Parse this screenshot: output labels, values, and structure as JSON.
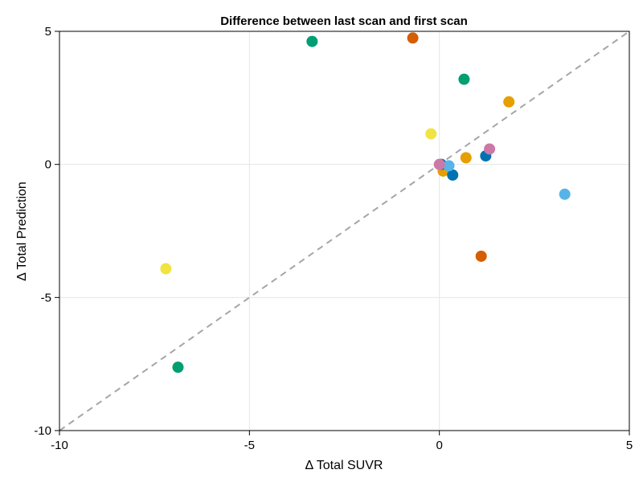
{
  "chart_data": {
    "type": "scatter",
    "title": "Difference between last scan and first scan",
    "xlabel": "Δ Total SUVR",
    "ylabel": "Δ Total Prediction",
    "xlim": [
      -10,
      5
    ],
    "ylim": [
      -10,
      5
    ],
    "xticks": [
      -10,
      -5,
      0,
      5
    ],
    "yticks": [
      -10,
      -5,
      0,
      5
    ],
    "x_tick_labels": [
      "-10",
      "-5",
      "0",
      "5"
    ],
    "y_tick_labels": [
      "-10",
      "-5",
      "0",
      "5"
    ],
    "grid": true,
    "reference_line": {
      "kind": "identity",
      "style": "dashed",
      "color": "#a6a6a6"
    },
    "series": [
      {
        "color": "#009E73",
        "points": [
          [
            -3.35,
            4.62
          ],
          [
            0.65,
            3.2
          ],
          [
            -6.88,
            -7.62
          ]
        ]
      },
      {
        "color": "#D55E00",
        "points": [
          [
            -0.7,
            4.75
          ],
          [
            1.1,
            -3.45
          ]
        ]
      },
      {
        "color": "#E69F00",
        "points": [
          [
            1.83,
            2.35
          ],
          [
            0.7,
            0.25
          ],
          [
            0.1,
            -0.25
          ]
        ]
      },
      {
        "color": "#F0E442",
        "points": [
          [
            -0.22,
            1.15
          ],
          [
            -7.2,
            -3.92
          ]
        ]
      },
      {
        "color": "#0072B2",
        "points": [
          [
            1.22,
            0.32
          ],
          [
            0.35,
            -0.4
          ],
          [
            0.05,
            0.0
          ]
        ]
      },
      {
        "color": "#56B4E9",
        "points": [
          [
            3.3,
            -1.12
          ],
          [
            0.25,
            -0.05
          ]
        ]
      },
      {
        "color": "#CC79A7",
        "points": [
          [
            1.32,
            0.58
          ],
          [
            0.0,
            0.0
          ]
        ]
      }
    ]
  }
}
